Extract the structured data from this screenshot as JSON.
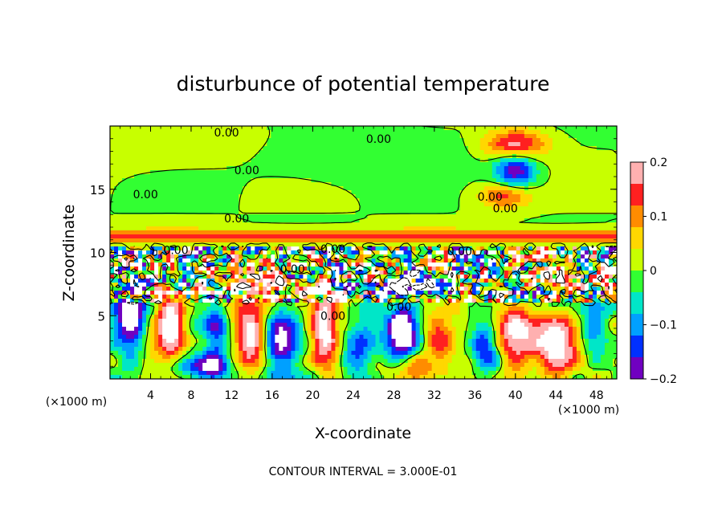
{
  "chart_data": {
    "type": "heatmap",
    "title": "disturbunce of potential temperature",
    "xlabel": "X-coordinate",
    "ylabel": "Z-coordinate",
    "x_unit": "(×1000 m)",
    "x_unit_right": "(×1000 m)",
    "xlim": [
      0,
      50
    ],
    "ylim": [
      0,
      20
    ],
    "x_ticks": [
      4,
      8,
      12,
      16,
      20,
      24,
      28,
      32,
      36,
      40,
      44,
      48
    ],
    "y_ticks": [
      5,
      10,
      15
    ],
    "colorbar": {
      "range": [
        -0.2,
        0.2
      ],
      "tick_values": [
        0.2,
        0.1,
        0,
        -0.1,
        -0.2
      ],
      "tick_labels": [
        "0.2",
        "0.1",
        "0",
        "−0.1",
        "−0.2"
      ],
      "colors": [
        "#ffb0b0",
        "#ff2020",
        "#ff8c00",
        "#ffd700",
        "#c8ff00",
        "#32ff32",
        "#00e6c8",
        "#00a0ff",
        "#0030ff",
        "#7000c0"
      ]
    },
    "contour_interval_label": "CONTOUR INTERVAL = 3.000E-01",
    "contour_labels": [
      {
        "x": 11.5,
        "z": 19.5,
        "text": "0.00"
      },
      {
        "x": 26.5,
        "z": 19.0,
        "text": "0.00"
      },
      {
        "x": 13.5,
        "z": 16.5,
        "text": "0.00"
      },
      {
        "x": 3.5,
        "z": 14.6,
        "text": "0.00"
      },
      {
        "x": 12.5,
        "z": 12.7,
        "text": "0.00"
      },
      {
        "x": 37.5,
        "z": 14.4,
        "text": "0.00"
      },
      {
        "x": 39.0,
        "z": 13.5,
        "text": "0.00"
      },
      {
        "x": 6.5,
        "z": 10.2,
        "text": "0.00"
      },
      {
        "x": 22.0,
        "z": 10.3,
        "text": "0.00"
      },
      {
        "x": 18.0,
        "z": 8.7,
        "text": "0.00"
      },
      {
        "x": 34.5,
        "z": 10.1,
        "text": "0.00"
      },
      {
        "x": 22.0,
        "z": 5.0,
        "text": "0.00"
      },
      {
        "x": 28.5,
        "z": 5.7,
        "text": "0.00"
      }
    ],
    "field_features": [
      {
        "x": 10,
        "z": 18.5,
        "sx": 14,
        "sz": 2.0,
        "v": 0.04
      },
      {
        "x": 22,
        "z": 18.0,
        "sx": 12,
        "sz": 2.0,
        "v": -0.05
      },
      {
        "x": 40,
        "z": 18.5,
        "sx": 3,
        "sz": 1.2,
        "v": 0.2
      },
      {
        "x": 40,
        "z": 16.5,
        "sx": 2,
        "sz": 1.5,
        "v": -0.2
      },
      {
        "x": 39,
        "z": 14.5,
        "sx": 2.5,
        "sz": 1.0,
        "v": 0.15
      },
      {
        "x": 2.0,
        "z": 5.0,
        "sx": 1.5,
        "sz": 2.5,
        "v": -0.25
      },
      {
        "x": 6.0,
        "z": 4.5,
        "sx": 1.5,
        "sz": 3.0,
        "v": 0.25
      },
      {
        "x": 10.5,
        "z": 3.5,
        "sx": 1.3,
        "sz": 3.0,
        "v": -0.15
      },
      {
        "x": 14.0,
        "z": 4.0,
        "sx": 1.5,
        "sz": 3.0,
        "v": 0.25
      },
      {
        "x": 17.0,
        "z": 3.0,
        "sx": 2.0,
        "sz": 2.5,
        "v": -0.25
      },
      {
        "x": 21.0,
        "z": 4.0,
        "sx": 1.5,
        "sz": 3.0,
        "v": 0.25
      },
      {
        "x": 25.0,
        "z": 3.0,
        "sx": 2.0,
        "sz": 2.5,
        "v": -0.15
      },
      {
        "x": 29.0,
        "z": 4.0,
        "sx": 1.5,
        "sz": 2.5,
        "v": -0.25
      },
      {
        "x": 33.0,
        "z": 3.0,
        "sx": 2.0,
        "sz": 2.0,
        "v": 0.15
      },
      {
        "x": 37.0,
        "z": 2.5,
        "sx": 1.5,
        "sz": 2.0,
        "v": -0.2
      },
      {
        "x": 40.0,
        "z": 3.5,
        "sx": 2.0,
        "sz": 2.5,
        "v": 0.2
      },
      {
        "x": 44.0,
        "z": 2.5,
        "sx": 2.0,
        "sz": 2.5,
        "v": 0.25
      },
      {
        "x": 47.5,
        "z": 4.0,
        "sx": 1.5,
        "sz": 2.0,
        "v": -0.1
      },
      {
        "x": 9.0,
        "z": 1.0,
        "sx": 3.0,
        "sz": 1.0,
        "v": -0.2
      },
      {
        "x": 30.0,
        "z": 1.0,
        "sx": 3.0,
        "sz": 1.0,
        "v": 0.1
      },
      {
        "x": 14.0,
        "z": 7.5,
        "sx": 4.0,
        "sz": 1.0,
        "v": 0.25
      },
      {
        "x": 30.0,
        "z": 7.5,
        "sx": 4.0,
        "sz": 1.0,
        "v": -0.25
      },
      {
        "x": 45.0,
        "z": 7.8,
        "sx": 3.0,
        "sz": 0.8,
        "v": 0.25
      }
    ]
  }
}
